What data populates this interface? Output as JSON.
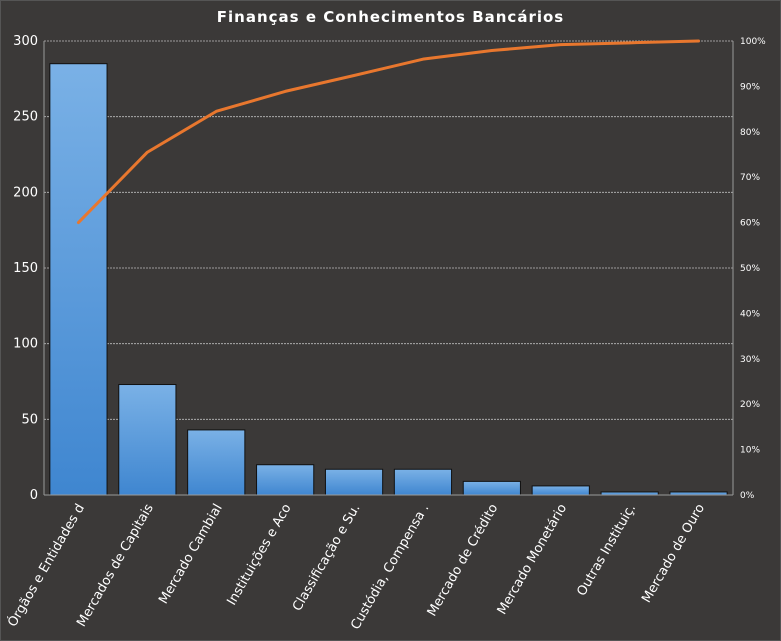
{
  "chart_data": {
    "type": "bar",
    "title": "Finanças e Conhecimentos Bancários",
    "xlabel": "",
    "ylabel": "",
    "categories": [
      "Órgãos e Entidades d",
      "Mercados de Capitais",
      "Mercado Cambial",
      "Instituições e Aco",
      "Classificação e Su.",
      "Custódia, Compensa .",
      "Mercado de Crédito",
      "Mercado Monetário",
      "Outras Instituiç.",
      "Mercado de Ouro"
    ],
    "values": [
      285,
      73,
      43,
      20,
      17,
      17,
      9,
      6,
      2,
      2
    ],
    "cumulative_percent": [
      60,
      75.5,
      84.5,
      88.9,
      92.4,
      96.0,
      97.9,
      99.2,
      99.6,
      100
    ],
    "ylim": [
      0,
      300
    ],
    "yticks": [
      0,
      50,
      100,
      150,
      200,
      250,
      300
    ],
    "y2lim": [
      0,
      100
    ],
    "y2ticks": [
      "0%",
      "10%",
      "20%",
      "30%",
      "40%",
      "50%",
      "60%",
      "70%",
      "80%",
      "90%",
      "100%"
    ],
    "grid": true,
    "legend": "none",
    "colors": {
      "bar": "#4a8fd6",
      "bar_top": "#7ab1e6",
      "line": "#e8772e",
      "background": "#3b3938",
      "grid": "#bdbdbd",
      "text": "#ffffff"
    }
  }
}
